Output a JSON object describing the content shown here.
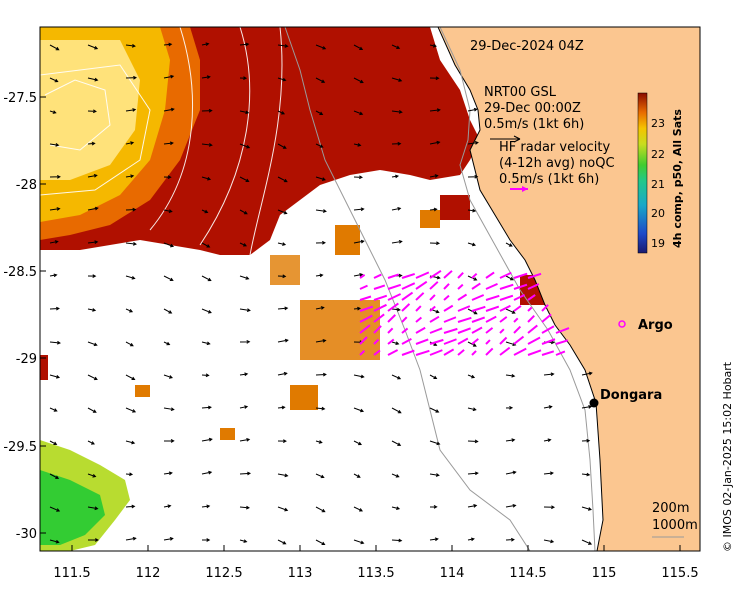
{
  "title": "29-Dec-2024 04Z",
  "legend": {
    "model_name": "NRT00 GSL",
    "model_time": "29-Dec 00:00Z",
    "model_scale": "0.5m/s (1kt 6h)",
    "radar_line1": "HF radar velocity",
    "radar_line2": "(4-12h avg) noQC",
    "radar_scale": "0.5m/s (1kt 6h)"
  },
  "colorbar": {
    "label": "4h comp, p50, All Sats",
    "ticks": [
      "23",
      "22",
      "21",
      "20",
      "19"
    ]
  },
  "axes": {
    "x_ticks": [
      "111.5",
      "112",
      "112.5",
      "113",
      "113.5",
      "114",
      "114.5",
      "115",
      "115.5"
    ],
    "y_ticks": [
      "-27.5",
      "-28",
      "-28.5",
      "-29",
      "-29.5",
      "-30"
    ]
  },
  "places": {
    "argo": "Argo",
    "dongara": "Dongara"
  },
  "isobaths": {
    "label_200": "200m",
    "label_1000": "1000m"
  },
  "credit": "© IMOS 02-Jan-2025 15:02 Hobart",
  "colors": {
    "land": "#fbc690",
    "sst_hot": "#b01000",
    "sst_warm": "#f5b800",
    "sst_core": "#ffe27a",
    "sst_cool": "#33cc33",
    "radar_vectors": "#ff00ff",
    "model_vectors": "#000000"
  }
}
